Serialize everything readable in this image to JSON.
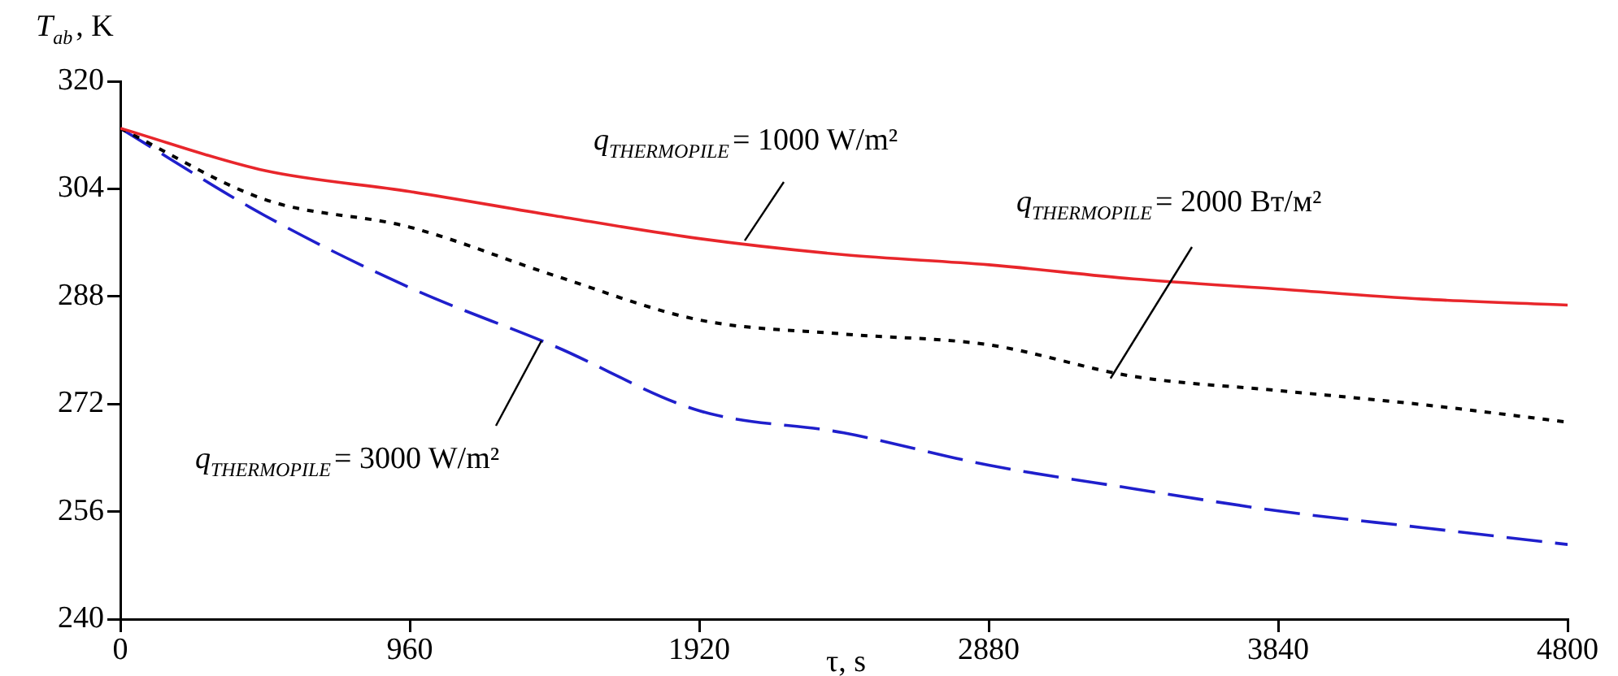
{
  "chart_data": {
    "type": "line",
    "xlabel": "τ, s",
    "ylabel": "T$_{ab}$, K",
    "x": [
      0,
      480,
      960,
      1440,
      1920,
      2400,
      2880,
      3360,
      3840,
      4320,
      4800
    ],
    "series": [
      {
        "color": "#e8262b",
        "line_style": "solid",
        "values": [
          313,
          306.7,
          303.6,
          300,
          296.6,
          294.2,
          292.7,
          290.6,
          289.1,
          287.6,
          286.7
        ]
      },
      {
        "color": "#000000",
        "line_style": "dotted",
        "values": [
          313,
          302.4,
          298.3,
          291.1,
          284.5,
          282.4,
          280.8,
          276.1,
          274.0,
          271.9,
          269.3
        ]
      },
      {
        "color": "#1f1fcc",
        "line_style": "dashed",
        "values": [
          313,
          300,
          289.3,
          280.6,
          271,
          267.7,
          262.9,
          259.4,
          256.1,
          253.6,
          251.1
        ]
      }
    ],
    "xlim": [
      0,
      4800
    ],
    "xticks": [
      0,
      960,
      1920,
      2880,
      3840,
      4800
    ],
    "ylim": [
      240,
      320
    ],
    "yticks": [
      240,
      256,
      272,
      288,
      304,
      320
    ],
    "grid": false,
    "legend": false,
    "marker": "none",
    "annotations": [
      {
        "text": "q$_{THERMOPILE}$= 1000 W/m²",
        "x": 2071,
        "y": 296.3
      },
      {
        "text": "q$_{THERMOPILE}$= 2000 Вт/м²",
        "x": 3284,
        "y": 275.8
      },
      {
        "text": "q$_{THERMOPILE}$= 3000 W/m²",
        "x": 1397,
        "y": 281.4
      }
    ]
  }
}
